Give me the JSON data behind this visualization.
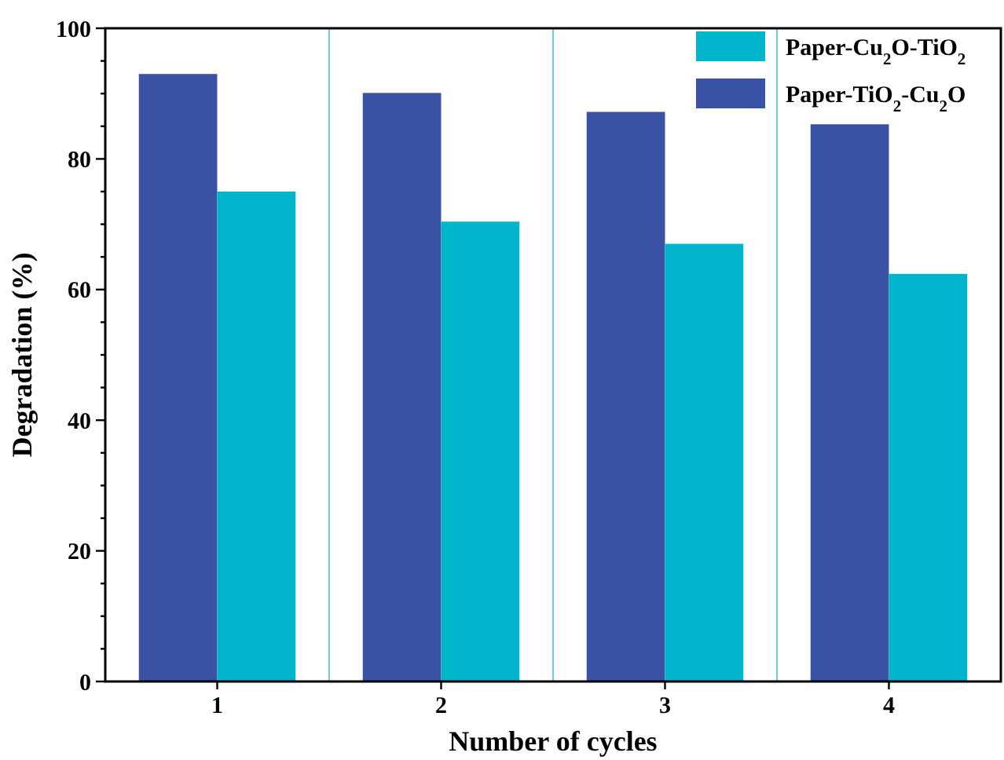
{
  "chart_data": {
    "type": "bar",
    "xlabel": "Number of cycles",
    "ylabel": "Degradation (%)",
    "x": [
      1,
      2,
      3,
      4
    ],
    "xlim": [
      0.5,
      4.5
    ],
    "xticks": [
      1,
      2,
      3,
      4
    ],
    "ylim": [
      0,
      100
    ],
    "yticks": [
      0,
      {
        "value": 5,
        "label": null
      },
      {
        "value": 10,
        "label": null
      },
      {
        "value": 15,
        "label": null
      },
      20,
      {
        "value": 25,
        "label": null
      },
      {
        "value": 30,
        "label": null
      },
      {
        "value": 35,
        "label": null
      },
      40,
      {
        "value": 45,
        "label": null
      },
      {
        "value": 50,
        "label": null
      },
      {
        "value": 55,
        "label": null
      },
      60,
      {
        "value": 65,
        "label": null
      },
      {
        "value": 70,
        "label": null
      },
      {
        "value": 75,
        "label": null
      },
      80,
      {
        "value": 85,
        "label": null
      },
      {
        "value": 90,
        "label": null
      },
      {
        "value": 95,
        "label": null
      },
      100
    ],
    "series": [
      {
        "name": "Paper-TiO$_{2}$-Cu$_{2}$O",
        "color": "#3a52a4",
        "values": [
          93.0,
          90.1,
          87.2,
          85.3
        ]
      },
      {
        "name": "Paper-Cu$_{2}$O-TiO$_{2}$",
        "color": "#00b4cc",
        "values": [
          75.0,
          70.4,
          67.0,
          62.4
        ]
      }
    ],
    "ref_lines": [
      {
        "axis": "x",
        "value": 1.5,
        "color": "#6fcbd8"
      },
      {
        "axis": "x",
        "value": 2.5,
        "color": "#6fcbd8"
      },
      {
        "axis": "x",
        "value": 3.5,
        "color": "#6fcbd8"
      }
    ],
    "legend": "top right",
    "grid": false
  }
}
